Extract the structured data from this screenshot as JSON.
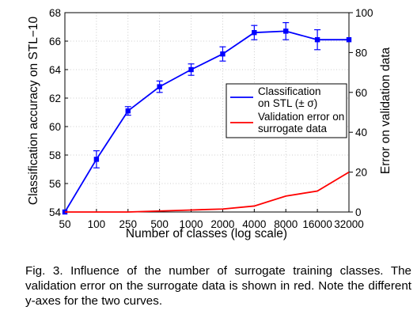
{
  "chart_data": {
    "type": "line",
    "x": [
      "50",
      "100",
      "250",
      "500",
      "1000",
      "2000",
      "4000",
      "8000",
      "16000",
      "32000"
    ],
    "xlabel": "Number of classes (log scale)",
    "ylabel_left": "Classification accuracy on STL−10",
    "ylabel_right": "Error on validation data",
    "ylim_left": [
      54,
      68
    ],
    "ylim_right": [
      0,
      100
    ],
    "yticks_left": [
      "54",
      "56",
      "58",
      "60",
      "62",
      "64",
      "66",
      "68"
    ],
    "yticks_right": [
      "0",
      "20",
      "40",
      "60",
      "80",
      "100"
    ],
    "grid": "dotted",
    "legend_position": "right",
    "series": [
      {
        "name": "Classification on STL (± σ)",
        "legend_lines": [
          "Classification",
          "on STL (± σ)"
        ],
        "axis": "left",
        "color": "#0000ff",
        "values": [
          54.0,
          57.7,
          61.1,
          62.8,
          64.0,
          65.1,
          66.6,
          66.7,
          66.1,
          66.1
        ],
        "errors": [
          0.0,
          0.6,
          0.3,
          0.4,
          0.4,
          0.5,
          0.5,
          0.6,
          0.7,
          0.0
        ]
      },
      {
        "name": "Validation error on surrogate data",
        "legend_lines": [
          "Validation error on",
          "surrogate data"
        ],
        "axis": "right",
        "color": "#ff0000",
        "values": [
          0.0,
          0.0,
          0.0,
          0.5,
          1.0,
          1.5,
          3.0,
          8.0,
          10.5,
          20.0
        ]
      }
    ]
  },
  "caption": "Fig. 3.  Influence of the number of surrogate training classes. The validation error on the surrogate data is shown in red. Note the different y-axes for the two curves."
}
